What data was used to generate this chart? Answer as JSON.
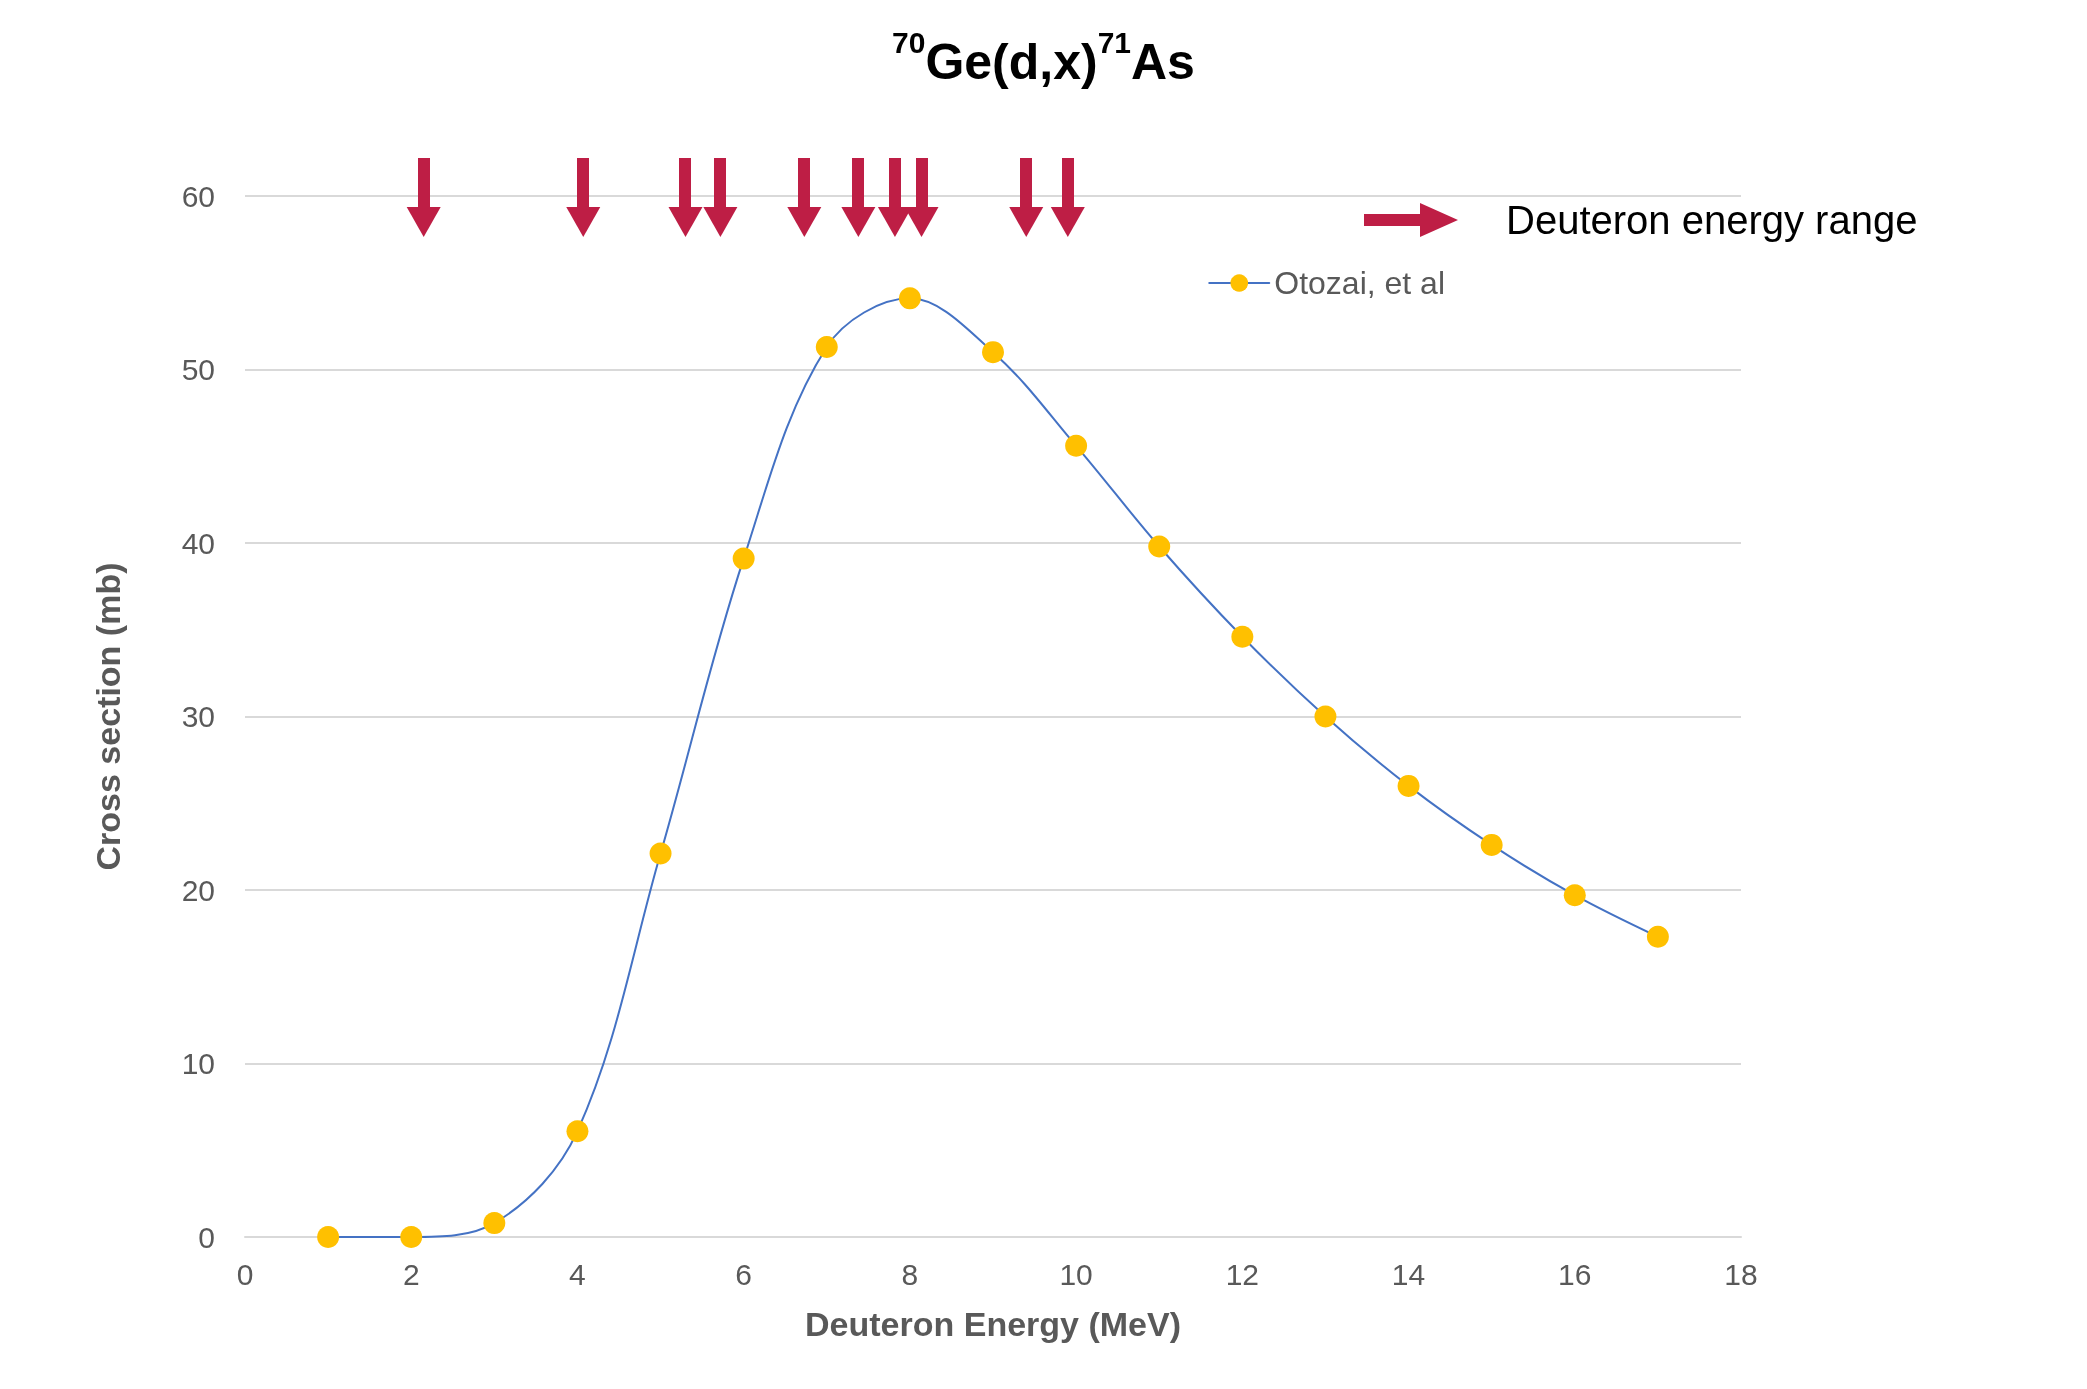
{
  "chart_data": {
    "type": "line",
    "title": "$^{70}$Ge(d,x)$^{71}$As",
    "xlabel": "Deuteron Energy (MeV)",
    "ylabel": "Cross section (mb)",
    "x": [
      1,
      2,
      3,
      4,
      5,
      6,
      7,
      8,
      9,
      10,
      11,
      12,
      13,
      14,
      15,
      16,
      17
    ],
    "series": [
      {
        "name": "Otozai, et al",
        "color": "#4472c4",
        "colors": [
          "#ffc000",
          "#ffc000",
          "#ffc000",
          "#ffc000",
          "#ffc000",
          "#ffc000",
          "#ffc000",
          "#ffc000",
          "#ffc000",
          "#ffc000",
          "#ffc000",
          "#ffc000",
          "#ffc000",
          "#ffc000",
          "#ffc000",
          "#ffc000",
          "#ffc000"
        ],
        "values": [
          0,
          0,
          0.8,
          6.1,
          22.1,
          39.1,
          51.3,
          54.1,
          51.0,
          45.6,
          39.8,
          34.6,
          30.0,
          26.0,
          22.6,
          19.7,
          17.3
        ]
      },
      {
        "type": "scatter",
        "marker": "triangle",
        "color": "#be1e45",
        "x": [
          2.15,
          4.07,
          5.3,
          5.72,
          6.73,
          7.38,
          7.82,
          8.14,
          9.4,
          9.9
        ],
        "values": [
          58.5,
          58.5,
          58.5,
          58.5,
          58.5,
          58.5,
          58.5,
          58.5,
          58.5,
          58.5
        ]
      }
    ],
    "xlim": [
      0,
      18
    ],
    "xticks": [
      0,
      2,
      4,
      6,
      8,
      10,
      12,
      14,
      16,
      18
    ],
    "ylim": [
      0,
      60
    ],
    "yticks": [
      0,
      10,
      20,
      30,
      40,
      50,
      60
    ],
    "grid": "y",
    "legend": "top right",
    "marker": "circle",
    "line_style": "solid",
    "annotations": [
      "Deuteron energy range"
    ]
  }
}
